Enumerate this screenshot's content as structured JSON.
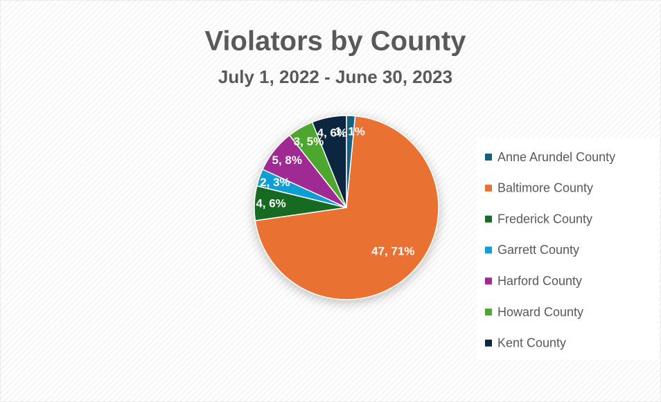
{
  "chart_data": {
    "type": "pie",
    "title": "Violators by County",
    "subtitle": "July 1, 2022 - June 30, 2023",
    "categories": [
      "Anne Arundel County",
      "Baltimore County",
      "Frederick County",
      "Garrett County",
      "Harford County",
      "Howard County",
      "Kent County"
    ],
    "values": [
      1,
      47,
      4,
      2,
      5,
      3,
      4
    ],
    "value_labels": [
      "1, 1%",
      "47, 71%",
      "4, 6%",
      "2, 3%",
      "5, 8%",
      "3, 5%",
      "4, 6%"
    ],
    "colors": [
      "#156082",
      "#e97132",
      "#196b24",
      "#0f9ed5",
      "#a02b93",
      "#4ea72e",
      "#0e2841"
    ],
    "legend": "right"
  }
}
